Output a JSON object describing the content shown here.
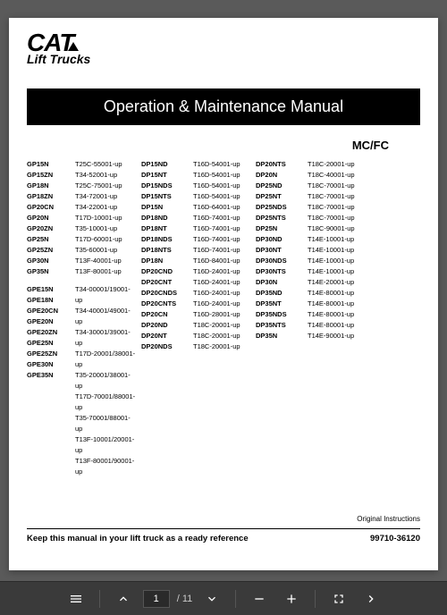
{
  "logo": {
    "brand": "CAT",
    "subbrand": "Lift Trucks"
  },
  "title": "Operation & Maintenance Manual",
  "subtitle": "MC/FC",
  "footer": {
    "original": "Original Instructions",
    "keep": "Keep this manual in your lift truck as a ready reference",
    "docnum": "99710-36120"
  },
  "toolbar": {
    "current_page": "1",
    "total_pages": "/ 11"
  },
  "models": {
    "col1_models": [
      "GP15N",
      "GP15ZN",
      "GP18N",
      "GP18ZN",
      "GP20CN",
      "GP20N",
      "GP20ZN",
      "GP25N",
      "GP25ZN",
      "GP30N",
      "GP35N"
    ],
    "col1_serials": [
      "T25C-55001-up",
      "T34-52001-up",
      "T25C-75001-up",
      "T34-72001-up",
      "T34-22001-up",
      "T17D-10001-up",
      "T35-10001-up",
      "T17D-60001-up",
      "T35-60001-up",
      "T13F-40001-up",
      "T13F-80001-up"
    ],
    "col1b_models": [
      "GPE15N",
      "GPE18N",
      "GPE20CN",
      "GPE20N",
      "GPE20ZN",
      "GPE25N",
      "GPE25ZN",
      "GPE30N",
      "GPE35N"
    ],
    "col1b_serials": [
      "T34-00001/19001-up",
      "T34-40001/49001-up",
      "T34-30001/39001-up",
      "T17D-20001/38001-up",
      "T35-20001/38001-up",
      "T17D-70001/88001-up",
      "T35-70001/88001-up",
      "T13F-10001/20001-up",
      "T13F-80001/90001-up"
    ],
    "col2_models": [
      "DP15ND",
      "DP15NT",
      "DP15NDS",
      "DP15NTS",
      "DP15N",
      "DP18ND",
      "DP18NT",
      "DP18NDS",
      "DP18NTS",
      "DP18N",
      "DP20CND",
      "DP20CNT",
      "DP20CNDS",
      "DP20CNTS",
      "DP20CN",
      "DP20ND",
      "DP20NT",
      "DP20NDS"
    ],
    "col2_serials": [
      "T16D-54001-up",
      "T16D-54001-up",
      "T16D-54001-up",
      "T16D-54001-up",
      "T16D-64001-up",
      "T16D-74001-up",
      "T16D-74001-up",
      "T16D-74001-up",
      "T16D-74001-up",
      "T16D-84001-up",
      "T16D-24001-up",
      "T16D-24001-up",
      "T16D-24001-up",
      "T16D-24001-up",
      "T16D-28001-up",
      "T18C-20001-up",
      "T18C-20001-up",
      "T18C-20001-up"
    ],
    "col3_models": [
      "DP20NTS",
      "DP20N",
      "DP25ND",
      "DP25NT",
      "DP25NDS",
      "DP25NTS",
      "DP25N",
      "DP30ND",
      "DP30NT",
      "DP30NDS",
      "DP30NTS",
      "DP30N",
      "DP35ND",
      "DP35NT",
      "DP35NDS",
      "DP35NTS",
      "DP35N"
    ],
    "col3_serials": [
      "T18C-20001-up",
      "T18C-40001-up",
      "T18C-70001-up",
      "T18C-70001-up",
      "T18C-70001-up",
      "T18C-70001-up",
      "T18C-90001-up",
      "T14E-10001-up",
      "T14E-10001-up",
      "T14E-10001-up",
      "T14E-10001-up",
      "T14E-20001-up",
      "T14E-80001-up",
      "T14E-80001-up",
      "T14E-80001-up",
      "T14E-80001-up",
      "T14E-90001-up"
    ]
  }
}
